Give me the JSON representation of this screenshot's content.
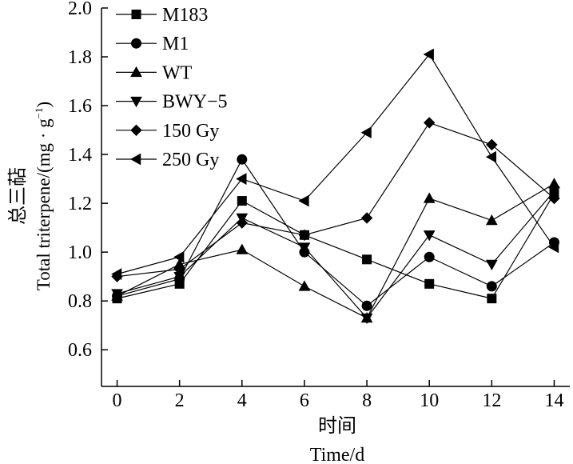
{
  "chart_data": {
    "type": "line",
    "title": "",
    "xlabel": "时间",
    "xlabel_en": "Time/d",
    "ylabel": "总三萜",
    "ylabel_en_prefix": "Total triterpene/(mg · g",
    "ylabel_en_sup": "−1",
    "ylabel_en_suffix": ")",
    "xlim": [
      -0.5,
      14.5
    ],
    "ylim": [
      0.45,
      2.0
    ],
    "xticks": [
      0,
      2,
      4,
      6,
      8,
      10,
      12,
      14
    ],
    "xtick_labels": [
      "0",
      "2",
      "4",
      "6",
      "8",
      "10",
      "12",
      "14"
    ],
    "yticks": [
      0.6,
      0.8,
      1.0,
      1.2,
      1.4,
      1.6,
      1.8,
      2.0
    ],
    "ytick_labels": [
      "0.6",
      "0.8",
      "1.0",
      "1.2",
      "1.4",
      "1.6",
      "1.8",
      "2.0"
    ],
    "grid": false,
    "legend_position": "top-left",
    "x": [
      0,
      2,
      4,
      6,
      8,
      10,
      12,
      14
    ],
    "series": [
      {
        "name": "M183",
        "marker": "square",
        "values": [
          0.81,
          0.87,
          1.21,
          1.07,
          0.97,
          0.87,
          0.81,
          1.24
        ]
      },
      {
        "name": "M1",
        "marker": "circle",
        "values": [
          0.82,
          0.89,
          1.38,
          1.0,
          0.78,
          0.98,
          0.86,
          1.04
        ]
      },
      {
        "name": "WT",
        "marker": "triangle-up",
        "values": [
          0.82,
          0.95,
          1.01,
          0.86,
          0.73,
          1.22,
          1.13,
          1.28
        ]
      },
      {
        "name": "BWY−5",
        "marker": "triangle-down",
        "values": [
          0.83,
          0.9,
          1.14,
          1.02,
          0.73,
          1.07,
          0.95,
          1.25
        ]
      },
      {
        "name": "150 Gy",
        "marker": "diamond",
        "values": [
          0.9,
          0.93,
          1.12,
          1.07,
          1.14,
          1.53,
          1.44,
          1.22
        ]
      },
      {
        "name": "250 Gy",
        "marker": "triangle-left",
        "values": [
          0.91,
          0.98,
          1.3,
          1.21,
          1.49,
          1.81,
          1.39,
          1.02
        ]
      }
    ]
  }
}
